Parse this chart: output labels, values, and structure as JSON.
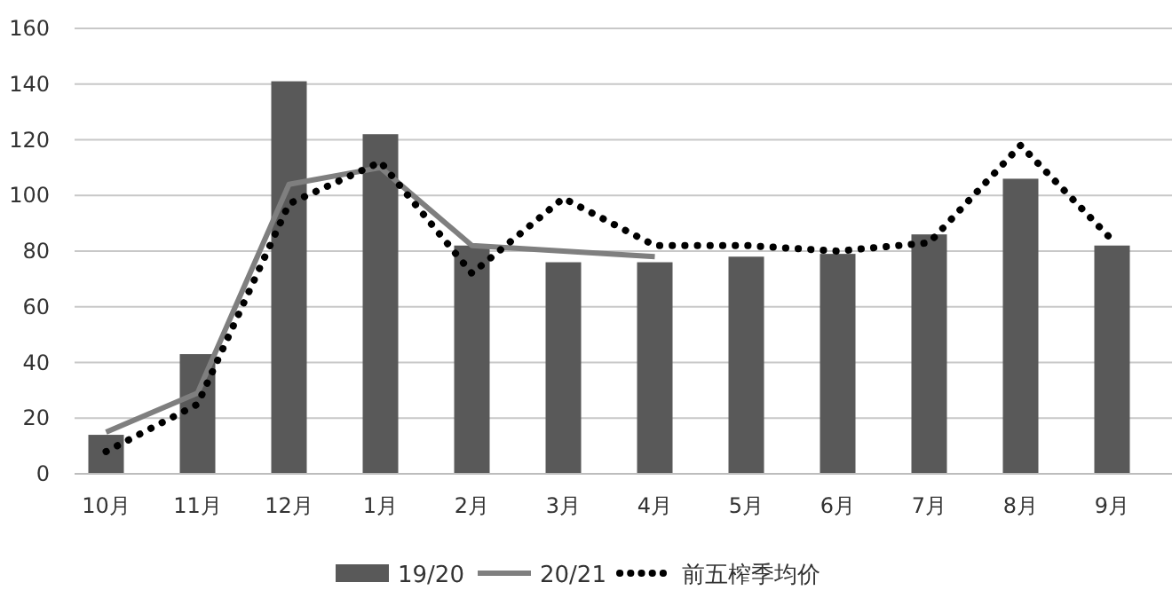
{
  "chart_data": {
    "type": "bar",
    "categories": [
      "10月",
      "11月",
      "12月",
      "1月",
      "2月",
      "3月",
      "4月",
      "5月",
      "6月",
      "7月",
      "8月",
      "9月"
    ],
    "series": [
      {
        "name": "19/20",
        "color": "#595959",
        "values": [
          14,
          43,
          141,
          122,
          82,
          76,
          76,
          78,
          79,
          86,
          106,
          82
        ]
      },
      {
        "name": "20/21",
        "type": "line",
        "color": "#7f7f7f",
        "line_style": "solid",
        "values": [
          15,
          29,
          104,
          110,
          82,
          80,
          78,
          null,
          null,
          null,
          null,
          null
        ]
      },
      {
        "name": "前五榨季均价",
        "type": "line",
        "color": "#000000",
        "line_style": "dotted",
        "values": [
          8,
          25,
          97,
          112,
          72,
          99,
          82,
          82,
          80,
          83,
          118,
          84
        ]
      }
    ],
    "ylim": [
      0,
      160
    ],
    "yticks": [
      0,
      20,
      40,
      60,
      80,
      100,
      120,
      140,
      160
    ],
    "grid": "y",
    "legend": "bottom"
  }
}
